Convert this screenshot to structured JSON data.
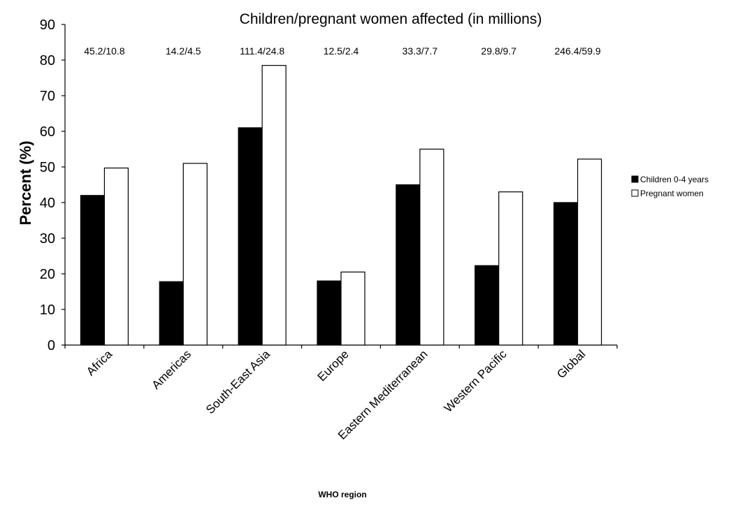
{
  "chart_data": {
    "type": "bar",
    "title": "Children/pregnant women affected (in millions)",
    "xlabel": "WHO region",
    "ylabel": "Percent (%)",
    "ylim": [
      0,
      90
    ],
    "yticks": [
      "0",
      "10",
      "20",
      "30",
      "40",
      "50",
      "60",
      "70",
      "80",
      "90"
    ],
    "categories": [
      "Africa",
      "Americas",
      "South-East Asia",
      "Europe",
      "Eastern Mediterranean",
      "Western Pacific",
      "Global"
    ],
    "annotations": [
      "45.2/10.8",
      "14.2/4.5",
      "111.4/24.8",
      "12.5/2.4",
      "33.3/7.7",
      "29.8/9.7",
      "246.4/59.9"
    ],
    "series": [
      {
        "name": "Children 0-4 years",
        "color": "#000000",
        "values": [
          42,
          17.8,
          61,
          18,
          45,
          22.3,
          40
        ]
      },
      {
        "name": "Pregnant women",
        "color": "#ffffff",
        "values": [
          49.7,
          51,
          78.5,
          20.5,
          55,
          43,
          52.2
        ]
      }
    ],
    "legend_position": "right",
    "grid": false
  }
}
